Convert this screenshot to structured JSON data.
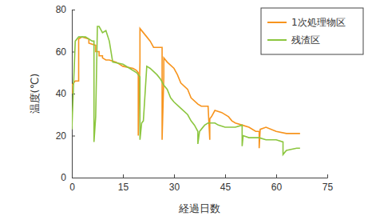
{
  "chart_data": {
    "type": "line",
    "x_label": "経過日数",
    "y_label": "温度(℃)",
    "xlim": [
      0,
      75
    ],
    "xticks": [
      0,
      15,
      30,
      45,
      60,
      75
    ],
    "ylim": [
      0,
      80
    ],
    "yticks": [
      0,
      20,
      40,
      60,
      80
    ],
    "legend": "top-right",
    "grid": false,
    "series": [
      {
        "name": "1次処理物区",
        "color": "#f7941d",
        "x": [
          0,
          0,
          1,
          2,
          2,
          3,
          5,
          5,
          7,
          7,
          8,
          8,
          9,
          9,
          10,
          11,
          13,
          15,
          18,
          19,
          19.5,
          19.5,
          20,
          20,
          21,
          22,
          23,
          24,
          25,
          26.5,
          26.5,
          27,
          27,
          28,
          30,
          31,
          32,
          34,
          35,
          37,
          38,
          40,
          40.5,
          40.5,
          41,
          42,
          44,
          46,
          47,
          48,
          50,
          52,
          54,
          55,
          55,
          55.3,
          57,
          60,
          63,
          67
        ],
        "values": [
          40,
          44,
          46,
          46,
          66,
          67,
          66,
          64,
          63,
          60,
          60,
          58,
          58,
          57,
          56,
          56,
          55,
          53,
          52,
          51,
          50,
          20,
          55,
          71,
          69,
          67,
          65,
          62,
          62,
          62,
          18,
          48,
          57,
          55,
          52,
          49,
          45,
          42,
          38,
          35,
          34,
          34,
          18,
          28,
          29,
          32,
          31,
          29,
          27,
          26,
          25,
          24,
          22,
          22,
          14,
          23,
          24,
          22,
          21,
          21
        ]
      },
      {
        "name": "残渣区",
        "color": "#8cc63f",
        "x": [
          0,
          0,
          1,
          2,
          4,
          6,
          6.5,
          6.5,
          7,
          7.5,
          8,
          9,
          10,
          11,
          12,
          15,
          17,
          19,
          20,
          20,
          20.5,
          21,
          22,
          23,
          25,
          26,
          27,
          28,
          29,
          30,
          32,
          34,
          35,
          36,
          37,
          37,
          37.5,
          38,
          39,
          40,
          42,
          43,
          45,
          48,
          50,
          50,
          50.3,
          52,
          55,
          57,
          60,
          62,
          62,
          63,
          66,
          67
        ],
        "values": [
          26,
          23,
          65,
          67,
          67,
          65,
          65,
          17,
          29,
          72,
          72,
          69,
          70,
          65,
          55,
          54,
          52,
          50,
          48,
          18,
          26,
          27,
          53,
          52,
          49,
          47,
          44,
          42,
          38,
          36,
          33,
          30,
          27,
          25,
          22,
          16,
          22,
          23,
          25,
          26,
          26,
          25,
          24,
          24,
          25,
          15,
          20,
          19,
          19,
          18,
          18,
          17,
          11,
          13,
          14,
          14
        ]
      }
    ]
  }
}
